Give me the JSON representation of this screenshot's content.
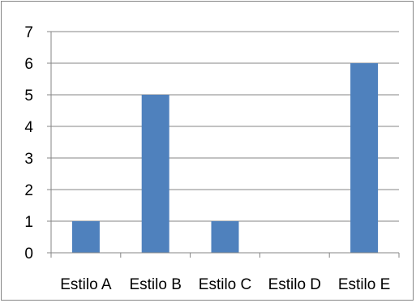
{
  "chart_data": {
    "type": "bar",
    "categories": [
      "Estilo A",
      "Estilo B",
      "Estilo C",
      "Estilo D",
      "Estilo E"
    ],
    "values": [
      1,
      5,
      1,
      0,
      6
    ],
    "ylim": [
      0,
      7
    ],
    "yticks": [
      "0",
      "1",
      "2",
      "3",
      "4",
      "5",
      "6",
      "7"
    ],
    "grid": true,
    "legend": "none",
    "bar_color": "#4f81bd",
    "grid_color": "#868686"
  }
}
